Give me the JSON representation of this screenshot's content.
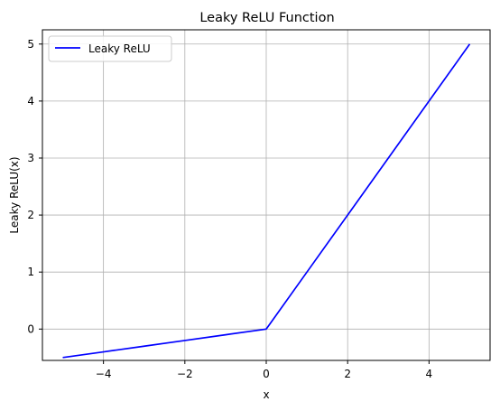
{
  "chart_data": {
    "type": "line",
    "title": "Leaky ReLU Function",
    "xlabel": "x",
    "ylabel": "Leaky ReLU(x)",
    "xlim": [
      -5.5,
      5.5
    ],
    "ylim": [
      -0.55,
      5.25
    ],
    "grid": true,
    "legend_position": "top-left",
    "x_ticks": [
      -4,
      -2,
      0,
      2,
      4
    ],
    "x_tick_labels": [
      "−4",
      "−2",
      "0",
      "2",
      "4"
    ],
    "y_ticks": [
      0,
      1,
      2,
      3,
      4,
      5
    ],
    "y_tick_labels": [
      "0",
      "1",
      "2",
      "3",
      "4",
      "5"
    ],
    "series": [
      {
        "name": "Leaky ReLU",
        "color": "#0000ff",
        "x": [
          -5,
          -4,
          -3,
          -2,
          -1,
          0,
          0.1,
          1,
          2,
          3,
          4,
          5
        ],
        "y": [
          -0.5,
          -0.4,
          -0.3,
          -0.2,
          -0.1,
          0,
          0.1,
          1,
          2,
          3,
          4,
          5
        ]
      }
    ]
  }
}
